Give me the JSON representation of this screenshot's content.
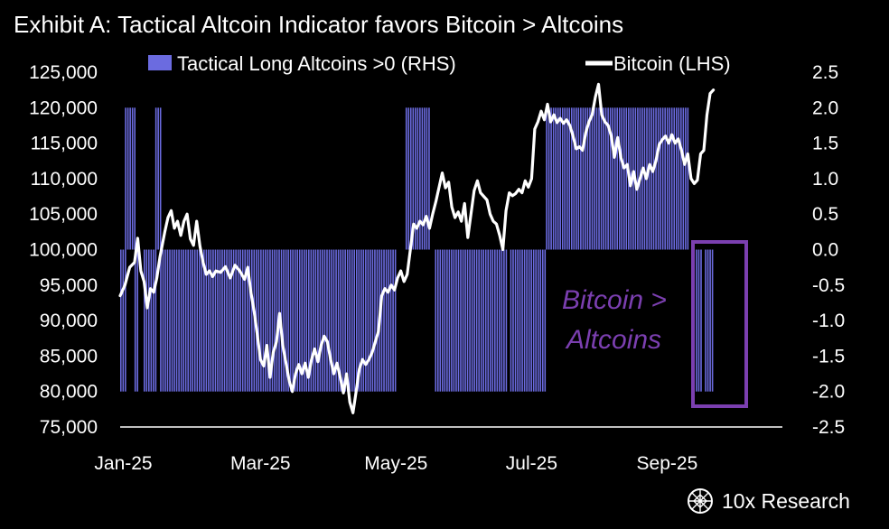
{
  "chart_data": {
    "type": "bar+line",
    "title": "Exhibit A: Tactical Altcoin Indicator favors Bitcoin > Altcoins",
    "legend": {
      "bars_label": "Tactical Long Altcoins >0 (RHS)",
      "line_label": "Bitcoin (LHS)",
      "placement": "top"
    },
    "colors": {
      "bars": "#6b6be0",
      "line": "#ffffff",
      "annotation": "#7b3fb0",
      "background": "#000000"
    },
    "x_axis": {
      "ticks": [
        "Jan-25",
        "Mar-25",
        "May-25",
        "Jul-25",
        "Sep-25"
      ],
      "tick_weeks": [
        0.2,
        8.8,
        17.3,
        25.8,
        34.3
      ],
      "range_weeks": [
        0,
        39.3
      ]
    },
    "y_left": {
      "ylim": [
        75000,
        125000
      ],
      "ticks": [
        "125,000",
        "120,000",
        "115,000",
        "110,000",
        "105,000",
        "100,000",
        "95,000",
        "90,000",
        "85,000",
        "80,000",
        "75,000"
      ]
    },
    "y_right": {
      "ylim": [
        -2.5,
        2.5
      ],
      "ticks": [
        "2.5",
        "2.0",
        "1.5",
        "1.0",
        "0.5",
        "0.0",
        "-0.5",
        "-1.0",
        "-1.5",
        "-2.0",
        "-2.5"
      ]
    },
    "bitcoin_series": {
      "name": "Bitcoin (LHS)",
      "unit_x": "weeks since Jan-25",
      "points": [
        [
          0,
          93500
        ],
        [
          0.3,
          95000
        ],
        [
          0.6,
          97500
        ],
        [
          0.9,
          98200
        ],
        [
          1.1,
          101600
        ],
        [
          1.3,
          97000
        ],
        [
          1.5,
          95500
        ],
        [
          1.7,
          91800
        ],
        [
          1.9,
          94500
        ],
        [
          2.1,
          94000
        ],
        [
          2.3,
          96000
        ],
        [
          2.5,
          99000
        ],
        [
          2.8,
          102500
        ],
        [
          3.0,
          104500
        ],
        [
          3.2,
          105500
        ],
        [
          3.4,
          103000
        ],
        [
          3.6,
          104000
        ],
        [
          3.8,
          102000
        ],
        [
          4.0,
          104000
        ],
        [
          4.2,
          105000
        ],
        [
          4.4,
          101500
        ],
        [
          4.6,
          100600
        ],
        [
          4.8,
          104000
        ],
        [
          5.0,
          100500
        ],
        [
          5.2,
          98200
        ],
        [
          5.4,
          96500
        ],
        [
          5.6,
          97000
        ],
        [
          5.8,
          96200
        ],
        [
          6.0,
          97000
        ],
        [
          6.3,
          96800
        ],
        [
          6.6,
          97600
        ],
        [
          6.9,
          96000
        ],
        [
          7.2,
          97800
        ],
        [
          7.5,
          97000
        ],
        [
          7.8,
          95800
        ],
        [
          8.0,
          97500
        ],
        [
          8.2,
          94000
        ],
        [
          8.4,
          91300
        ],
        [
          8.6,
          88000
        ],
        [
          8.8,
          84500
        ],
        [
          9.0,
          83600
        ],
        [
          9.2,
          86500
        ],
        [
          9.4,
          82000
        ],
        [
          9.6,
          85500
        ],
        [
          9.8,
          87000
        ],
        [
          10.0,
          91000
        ],
        [
          10.2,
          86500
        ],
        [
          10.4,
          84000
        ],
        [
          10.6,
          81500
        ],
        [
          10.8,
          80000
        ],
        [
          11.0,
          82500
        ],
        [
          11.2,
          83800
        ],
        [
          11.4,
          82500
        ],
        [
          11.6,
          84000
        ],
        [
          11.8,
          82000
        ],
        [
          12.0,
          84500
        ],
        [
          12.2,
          86000
        ],
        [
          12.4,
          84200
        ],
        [
          12.6,
          86500
        ],
        [
          12.8,
          87800
        ],
        [
          13.0,
          87000
        ],
        [
          13.2,
          84500
        ],
        [
          13.4,
          82500
        ],
        [
          13.6,
          84000
        ],
        [
          13.8,
          82000
        ],
        [
          14.0,
          79800
        ],
        [
          14.2,
          82500
        ],
        [
          14.4,
          78500
        ],
        [
          14.6,
          77000
        ],
        [
          14.8,
          80000
        ],
        [
          15.0,
          83200
        ],
        [
          15.2,
          84500
        ],
        [
          15.4,
          83800
        ],
        [
          15.6,
          84500
        ],
        [
          15.8,
          85500
        ],
        [
          16.0,
          87000
        ],
        [
          16.2,
          88500
        ],
        [
          16.4,
          93500
        ],
        [
          16.6,
          94500
        ],
        [
          16.8,
          94000
        ],
        [
          17.0,
          95000
        ],
        [
          17.2,
          94300
        ],
        [
          17.4,
          96000
        ],
        [
          17.6,
          97000
        ],
        [
          17.8,
          95500
        ],
        [
          18.0,
          96500
        ],
        [
          18.2,
          100000
        ],
        [
          18.4,
          103600
        ],
        [
          18.6,
          103000
        ],
        [
          18.8,
          104000
        ],
        [
          19.0,
          103500
        ],
        [
          19.2,
          104700
        ],
        [
          19.4,
          103000
        ],
        [
          19.6,
          105000
        ],
        [
          19.8,
          106800
        ],
        [
          20.0,
          108800
        ],
        [
          20.2,
          110800
        ],
        [
          20.4,
          108700
        ],
        [
          20.6,
          109500
        ],
        [
          20.8,
          106000
        ],
        [
          21.0,
          104500
        ],
        [
          21.2,
          105300
        ],
        [
          21.4,
          104000
        ],
        [
          21.6,
          106500
        ],
        [
          21.8,
          101700
        ],
        [
          22.0,
          105000
        ],
        [
          22.2,
          108300
        ],
        [
          22.4,
          109700
        ],
        [
          22.6,
          108000
        ],
        [
          22.8,
          107500
        ],
        [
          23.0,
          107000
        ],
        [
          23.2,
          105000
        ],
        [
          23.4,
          104000
        ],
        [
          23.6,
          103600
        ],
        [
          23.8,
          102000
        ],
        [
          24.0,
          100000
        ],
        [
          24.2,
          105500
        ],
        [
          24.4,
          108000
        ],
        [
          24.6,
          107600
        ],
        [
          24.8,
          107900
        ],
        [
          25.0,
          108500
        ],
        [
          25.2,
          108000
        ],
        [
          25.4,
          109700
        ],
        [
          25.6,
          108800
        ],
        [
          25.8,
          110000
        ],
        [
          26.0,
          117000
        ],
        [
          26.2,
          118000
        ],
        [
          26.4,
          119500
        ],
        [
          26.6,
          118300
        ],
        [
          26.8,
          120500
        ],
        [
          27.0,
          118000
        ],
        [
          27.2,
          119000
        ],
        [
          27.4,
          117900
        ],
        [
          27.6,
          118500
        ],
        [
          27.8,
          117800
        ],
        [
          28.0,
          118300
        ],
        [
          28.2,
          117500
        ],
        [
          28.4,
          116000
        ],
        [
          28.6,
          114200
        ],
        [
          28.8,
          114500
        ],
        [
          29.0,
          114000
        ],
        [
          29.2,
          116500
        ],
        [
          29.4,
          118000
        ],
        [
          29.6,
          119000
        ],
        [
          29.8,
          121500
        ],
        [
          30.0,
          123300
        ],
        [
          30.2,
          119000
        ],
        [
          30.4,
          118000
        ],
        [
          30.6,
          117500
        ],
        [
          30.8,
          116000
        ],
        [
          31.0,
          113000
        ],
        [
          31.2,
          115800
        ],
        [
          31.4,
          113000
        ],
        [
          31.6,
          111500
        ],
        [
          31.8,
          112000
        ],
        [
          32.0,
          109000
        ],
        [
          32.2,
          111000
        ],
        [
          32.4,
          108500
        ],
        [
          32.6,
          110000
        ],
        [
          32.8,
          111500
        ],
        [
          33.0,
          110000
        ],
        [
          33.2,
          112000
        ],
        [
          33.4,
          111000
        ],
        [
          33.6,
          112500
        ],
        [
          33.8,
          114800
        ],
        [
          34.0,
          115500
        ],
        [
          34.2,
          116000
        ],
        [
          34.4,
          115000
        ],
        [
          34.6,
          116200
        ],
        [
          34.8,
          115000
        ],
        [
          35.0,
          115600
        ],
        [
          35.2,
          114000
        ],
        [
          35.4,
          112000
        ],
        [
          35.6,
          113500
        ],
        [
          35.8,
          110000
        ],
        [
          36.0,
          109300
        ],
        [
          36.2,
          109800
        ],
        [
          36.4,
          113500
        ],
        [
          36.6,
          114000
        ],
        [
          36.8,
          119000
        ],
        [
          37.0,
          122000
        ],
        [
          37.2,
          122500
        ]
      ]
    },
    "indicator_series": {
      "name": "Tactical Long Altcoins >0 (RHS)",
      "unit_x": "weeks since Jan-25",
      "note": "Vertical bars at +2.0 or -2.0; 0 means no bar",
      "segments": [
        {
          "start": 0.0,
          "end": 0.3,
          "value": -2.0
        },
        {
          "start": 0.3,
          "end": 0.9,
          "value": 2.0
        },
        {
          "start": 0.9,
          "end": 2.2,
          "value": -2.0
        },
        {
          "start": 2.2,
          "end": 2.5,
          "value": 2.0
        },
        {
          "start": 2.5,
          "end": 17.3,
          "value": -2.0
        },
        {
          "start": 17.3,
          "end": 17.9,
          "value": 0.0
        },
        {
          "start": 17.9,
          "end": 19.6,
          "value": 2.0
        },
        {
          "start": 19.6,
          "end": 26.7,
          "value": -2.0
        },
        {
          "start": 26.7,
          "end": 35.7,
          "value": 2.0
        },
        {
          "start": 35.7,
          "end": 36.1,
          "value": 0.0
        },
        {
          "start": 36.1,
          "end": 37.2,
          "value": -2.0
        }
      ],
      "gaps": [
        [
          1.05,
          1.35
        ],
        [
          19.45,
          19.6
        ],
        [
          24.2,
          24.45
        ],
        [
          36.4,
          36.55
        ]
      ]
    },
    "annotation": {
      "text_line1": "Bitcoin >",
      "text_line2": "Altcoins",
      "highlight_range_weeks": [
        36.0,
        37.3
      ]
    }
  },
  "brand": {
    "name": "10x Research",
    "icon": "10x-logo-icon"
  }
}
